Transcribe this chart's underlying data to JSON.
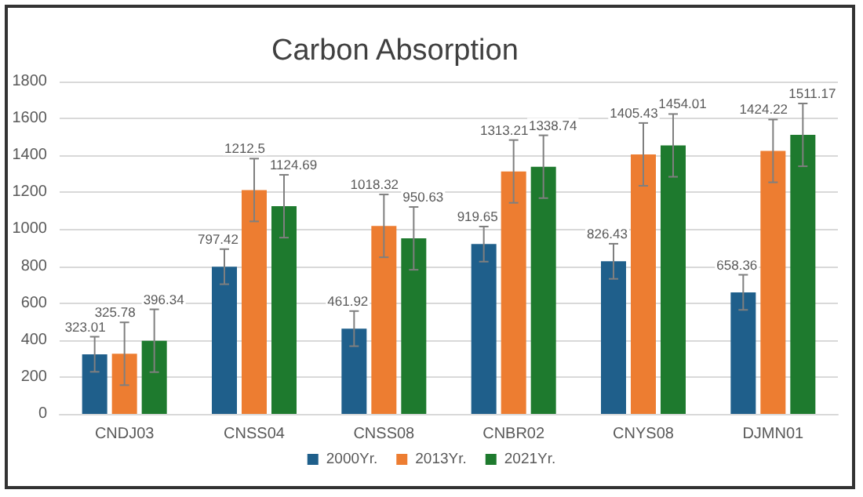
{
  "chart_data": {
    "type": "bar",
    "title": "Carbon Absorption",
    "categories": [
      "CNDJ03",
      "CNSS04",
      "CNSS08",
      "CNBR02",
      "CNYS08",
      "DJMN01"
    ],
    "series": [
      {
        "name": "2000Yr.",
        "color": "#1f5f8b",
        "values": [
          323.01,
          797.42,
          461.92,
          919.65,
          826.43,
          658.36
        ],
        "errors": [
          95,
          95,
          95,
          95,
          95,
          95
        ]
      },
      {
        "name": "2013Yr.",
        "color": "#ed7d31",
        "values": [
          325.78,
          1212.5,
          1018.32,
          1313.21,
          1405.43,
          1424.22
        ],
        "errors": [
          170,
          170,
          170,
          170,
          170,
          170
        ]
      },
      {
        "name": "2021Yr.",
        "color": "#1e7a2e",
        "values": [
          396.34,
          1124.69,
          950.63,
          1338.74,
          1454.01,
          1511.17
        ],
        "errors": [
          170,
          170,
          170,
          170,
          170,
          170
        ]
      }
    ],
    "ylim": [
      0,
      1800
    ],
    "yticks": [
      0,
      200,
      400,
      600,
      800,
      1000,
      1200,
      1400,
      1600,
      1800
    ],
    "grid": "y",
    "legend": "bottom",
    "data_labels": true
  }
}
